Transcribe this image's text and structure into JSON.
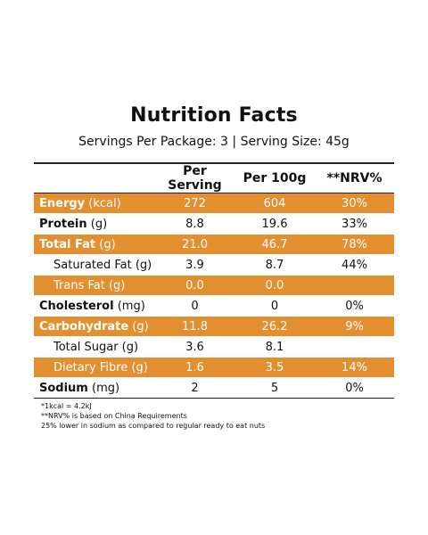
{
  "title": "Nutrition Facts",
  "subtitle": "Servings Per Package: 3 | Serving Size: 45g",
  "columns": [
    "Per Serving",
    "Per 100g",
    "**NRV%"
  ],
  "rows": [
    {
      "name": "Energy",
      "unit": " (kcal)",
      "per_serving": "272",
      "per_100g": "604",
      "nrv": "30%"
    },
    {
      "name": "Protein",
      "unit": " (g)",
      "per_serving": "8.8",
      "per_100g": "19.6",
      "nrv": "33%"
    },
    {
      "name": "Total Fat",
      "unit": " (g)",
      "per_serving": "21.0",
      "per_100g": "46.7",
      "nrv": "78%"
    },
    {
      "name": "",
      "unit": "Saturated Fat (g)",
      "per_serving": "3.9",
      "per_100g": "8.7",
      "nrv": "44%"
    },
    {
      "name": "",
      "unit": "Trans Fat (g)",
      "per_serving": "0.0",
      "per_100g": "0.0",
      "nrv": ""
    },
    {
      "name": "Cholesterol",
      "unit": " (mg)",
      "per_serving": "0",
      "per_100g": "0",
      "nrv": "0%"
    },
    {
      "name": "Carbohydrate",
      "unit": " (g)",
      "per_serving": "11.8",
      "per_100g": "26.2",
      "nrv": "9%"
    },
    {
      "name": "",
      "unit": "Total Sugar (g)",
      "per_serving": "3.6",
      "per_100g": "8.1",
      "nrv": ""
    },
    {
      "name": "",
      "unit": "Dietary Fibre (g)",
      "per_serving": "1.6",
      "per_100g": "3.5",
      "nrv": "14%"
    },
    {
      "name": "Sodium",
      "unit": " (mg)",
      "per_serving": "2",
      "per_100g": "5",
      "nrv": "0%"
    }
  ],
  "notes": [
    "*1kcal = 4.2kJ",
    "**NRV% is based on China Requirements",
    "25% lower in sodium as compared to regular ready to eat nuts"
  ],
  "colors": {
    "highlight": "#e48f2f"
  }
}
